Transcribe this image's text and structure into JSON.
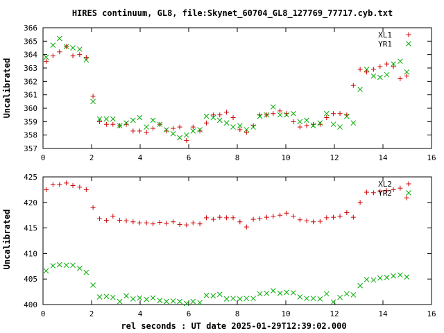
{
  "chart_data": [
    {
      "type": "scatter",
      "title": "HIRES continuum, GL8, file:Skynet_60704_GL8_127769_77717.cyb.txt",
      "ylabel": "Uncalibrated",
      "xlabel": "",
      "xlim": [
        0,
        16
      ],
      "ylim": [
        357,
        366
      ],
      "xticks": [
        0,
        2,
        4,
        6,
        8,
        10,
        12,
        14,
        16
      ],
      "yticks": [
        357,
        358,
        359,
        360,
        361,
        362,
        363,
        364,
        365,
        366
      ],
      "legend_position": "top-right",
      "grid": false,
      "series": [
        {
          "name": "XL1",
          "marker": "+",
          "color": "#cc0000",
          "x": [
            0.13,
            0.41,
            0.68,
            0.96,
            1.23,
            1.51,
            1.78,
            2.06,
            2.33,
            2.61,
            2.88,
            3.16,
            3.43,
            3.71,
            3.98,
            4.26,
            4.53,
            4.81,
            5.08,
            5.36,
            5.63,
            5.91,
            6.18,
            6.46,
            6.73,
            7.01,
            7.28,
            7.56,
            7.83,
            8.11,
            8.38,
            8.66,
            8.93,
            9.21,
            9.48,
            9.76,
            10.03,
            10.31,
            10.58,
            10.86,
            11.13,
            11.41,
            11.68,
            11.96,
            12.23,
            12.51,
            12.78,
            13.06,
            13.33,
            13.61,
            13.88,
            14.16,
            14.43,
            14.71,
            14.98
          ],
          "y": [
            363.5,
            363.9,
            364.2,
            364.6,
            363.9,
            364.0,
            363.8,
            360.9,
            359.0,
            358.8,
            358.8,
            358.7,
            358.8,
            358.3,
            358.3,
            358.2,
            358.5,
            358.8,
            358.3,
            358.5,
            358.6,
            357.6,
            358.6,
            358.3,
            358.9,
            359.5,
            359.5,
            359.7,
            359.3,
            358.4,
            358.2,
            358.7,
            359.5,
            359.5,
            359.6,
            359.8,
            359.6,
            359.0,
            358.6,
            358.7,
            358.8,
            358.8,
            359.3,
            359.6,
            359.6,
            359.5,
            361.7,
            362.9,
            362.7,
            362.9,
            363.1,
            363.3,
            363.1,
            362.2,
            362.4
          ],
          "count_shown": 55
        },
        {
          "name": "YR1",
          "marker": "x",
          "color": "#00aa00",
          "x": [
            0.13,
            0.41,
            0.68,
            0.96,
            1.23,
            1.51,
            1.78,
            2.06,
            2.33,
            2.61,
            2.88,
            3.16,
            3.43,
            3.71,
            3.98,
            4.26,
            4.53,
            4.81,
            5.08,
            5.36,
            5.63,
            5.91,
            6.18,
            6.46,
            6.73,
            7.01,
            7.28,
            7.56,
            7.83,
            8.11,
            8.38,
            8.66,
            8.93,
            9.21,
            9.48,
            9.76,
            10.03,
            10.31,
            10.58,
            10.86,
            11.13,
            11.41,
            11.68,
            11.96,
            12.23,
            12.51,
            12.78,
            13.06,
            13.33,
            13.61,
            13.88,
            14.16,
            14.43,
            14.71,
            14.98
          ],
          "y": [
            363.8,
            364.7,
            365.2,
            364.6,
            364.5,
            364.4,
            363.6,
            360.5,
            359.2,
            359.2,
            359.2,
            358.7,
            358.9,
            359.1,
            359.3,
            358.6,
            359.1,
            358.8,
            358.4,
            358.1,
            357.8,
            358.0,
            358.3,
            358.4,
            359.4,
            359.3,
            359.1,
            358.9,
            358.6,
            358.7,
            358.4,
            358.6,
            359.4,
            359.5,
            360.1,
            359.5,
            359.5,
            359.6,
            359.0,
            359.1,
            358.7,
            358.9,
            359.6,
            358.8,
            358.6,
            359.4,
            358.9,
            361.4,
            362.9,
            362.4,
            362.3,
            362.5,
            363.3,
            363.5,
            362.7
          ],
          "count_shown": 55
        }
      ]
    },
    {
      "type": "scatter",
      "title": "",
      "ylabel": "Uncalibrated",
      "xlabel": "rel seconds : UT date 2025-01-29T12:39:02.000",
      "xlim": [
        0,
        16
      ],
      "ylim": [
        400,
        425
      ],
      "xticks": [
        0,
        2,
        4,
        6,
        8,
        10,
        12,
        14,
        16
      ],
      "yticks": [
        400,
        405,
        410,
        415,
        420,
        425
      ],
      "legend_position": "top-right",
      "grid": false,
      "series": [
        {
          "name": "XL2",
          "marker": "+",
          "color": "#cc0000",
          "x": [
            0.13,
            0.41,
            0.68,
            0.96,
            1.23,
            1.51,
            1.78,
            2.06,
            2.33,
            2.61,
            2.88,
            3.16,
            3.43,
            3.71,
            3.98,
            4.26,
            4.53,
            4.81,
            5.08,
            5.36,
            5.63,
            5.91,
            6.18,
            6.46,
            6.73,
            7.01,
            7.28,
            7.56,
            7.83,
            8.11,
            8.38,
            8.66,
            8.93,
            9.21,
            9.48,
            9.76,
            10.03,
            10.31,
            10.58,
            10.86,
            11.13,
            11.41,
            11.68,
            11.96,
            12.23,
            12.51,
            12.78,
            13.06,
            13.33,
            13.61,
            13.88,
            14.16,
            14.43,
            14.71,
            14.98
          ],
          "y": [
            422.5,
            423.5,
            423.5,
            423.8,
            423.3,
            423.0,
            422.5,
            419.0,
            416.8,
            416.5,
            417.3,
            416.5,
            416.4,
            416.2,
            416.0,
            416.0,
            415.8,
            416.1,
            415.9,
            416.2,
            415.7,
            415.6,
            416.0,
            415.8,
            417.0,
            416.7,
            417.1,
            417.0,
            417.0,
            416.2,
            415.2,
            416.7,
            416.8,
            417.1,
            417.3,
            417.5,
            417.9,
            417.3,
            416.6,
            416.4,
            416.2,
            416.3,
            417.0,
            417.1,
            417.3,
            418.0,
            417.1,
            420.0,
            422.0,
            421.9,
            422.1,
            422.3,
            422.5,
            422.8,
            420.9
          ],
          "count_shown": 55
        },
        {
          "name": "YR2",
          "marker": "x",
          "color": "#00aa00",
          "x": [
            0.13,
            0.41,
            0.68,
            0.96,
            1.23,
            1.51,
            1.78,
            2.06,
            2.33,
            2.61,
            2.88,
            3.16,
            3.43,
            3.71,
            3.98,
            4.26,
            4.53,
            4.81,
            5.08,
            5.36,
            5.63,
            5.91,
            6.18,
            6.46,
            6.73,
            7.01,
            7.28,
            7.56,
            7.83,
            8.11,
            8.38,
            8.66,
            8.93,
            9.21,
            9.48,
            9.76,
            10.03,
            10.31,
            10.58,
            10.86,
            11.13,
            11.41,
            11.68,
            11.96,
            12.23,
            12.51,
            12.78,
            13.06,
            13.33,
            13.61,
            13.88,
            14.16,
            14.43,
            14.71,
            14.98
          ],
          "y": [
            406.6,
            407.6,
            407.8,
            407.7,
            407.7,
            407.1,
            406.3,
            403.8,
            401.5,
            401.6,
            401.4,
            400.6,
            401.7,
            401.1,
            401.3,
            401.0,
            401.3,
            400.8,
            400.6,
            400.7,
            400.6,
            400.2,
            400.6,
            400.4,
            401.8,
            401.7,
            402.0,
            401.1,
            401.2,
            401.1,
            401.2,
            401.2,
            402.1,
            402.2,
            402.7,
            402.2,
            402.4,
            402.3,
            401.5,
            401.2,
            401.2,
            401.1,
            402.1,
            400.5,
            401.4,
            402.1,
            401.9,
            403.7,
            404.9,
            404.8,
            405.2,
            405.3,
            405.6,
            405.8,
            405.4
          ],
          "count_shown": 55
        }
      ]
    }
  ]
}
